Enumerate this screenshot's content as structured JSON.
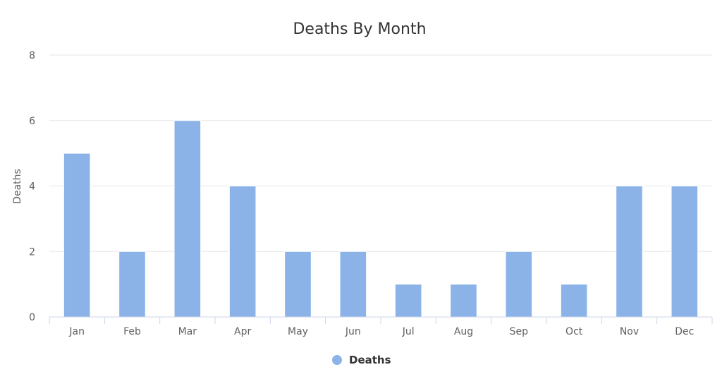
{
  "chart_data": {
    "type": "bar",
    "title": "Deaths By Month",
    "xlabel": "",
    "ylabel": "Deaths",
    "categories": [
      "Jan",
      "Feb",
      "Mar",
      "Apr",
      "May",
      "Jun",
      "Jul",
      "Aug",
      "Sep",
      "Oct",
      "Nov",
      "Dec"
    ],
    "series": [
      {
        "name": "Deaths",
        "values": [
          5,
          2,
          6,
          4,
          2,
          2,
          1,
          1,
          2,
          1,
          4,
          4
        ],
        "color": "#8bb3e8"
      }
    ],
    "ylim": [
      0,
      8
    ],
    "yticks": [
      0,
      2,
      4,
      6,
      8
    ],
    "grid": true,
    "legend_position": "bottom-center"
  }
}
